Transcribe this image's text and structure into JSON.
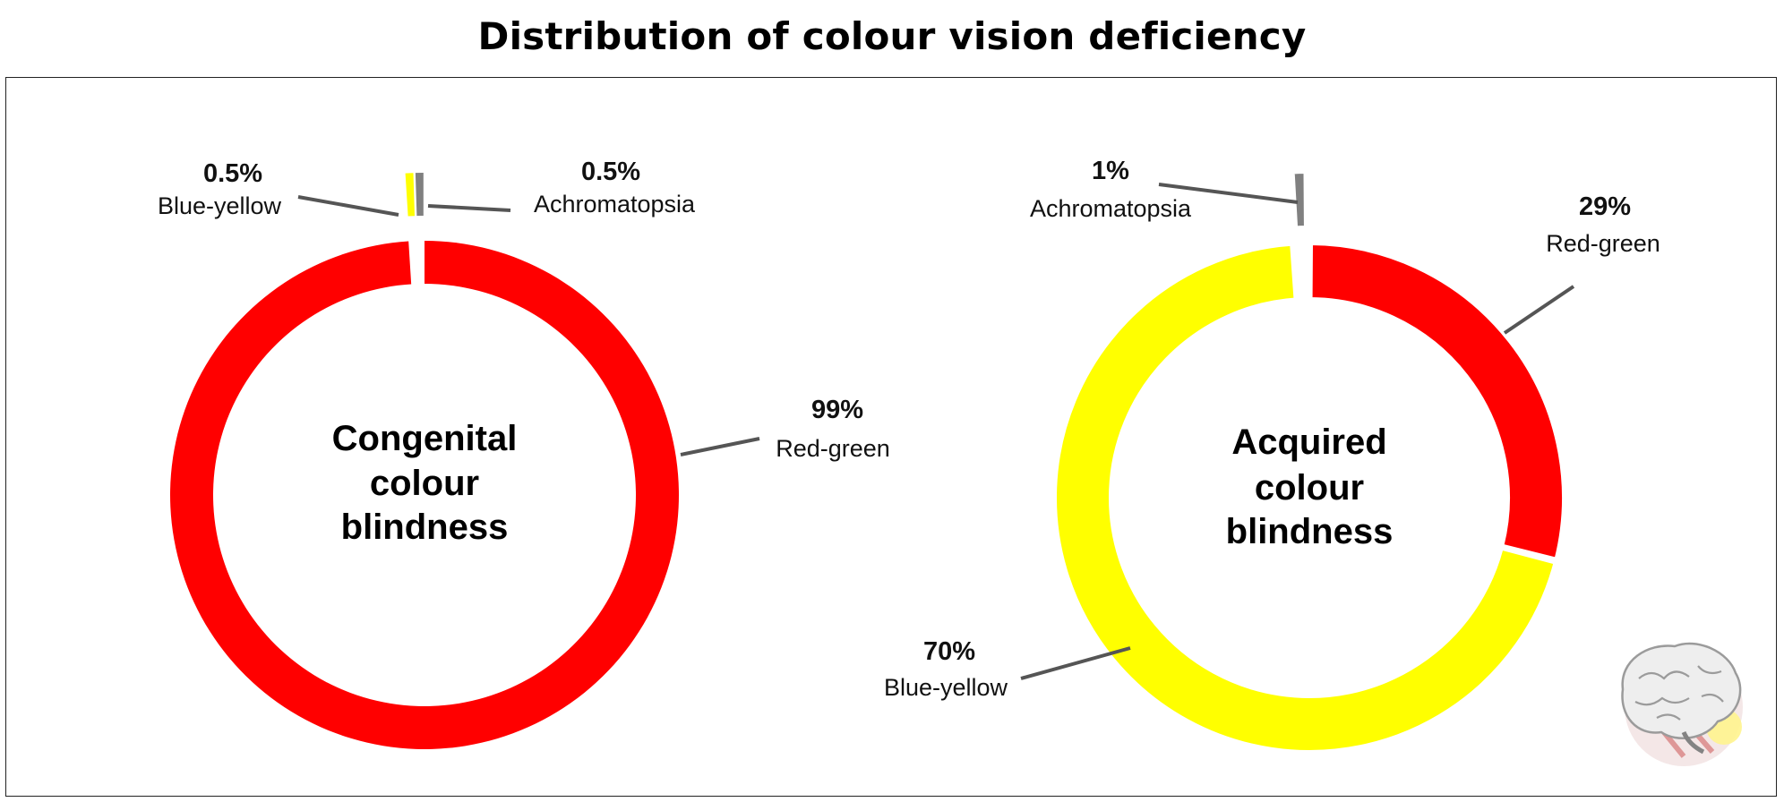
{
  "title": "Distribution of colour vision deficiency",
  "colors": {
    "Red-green": "#ff0000",
    "Blue-yellow": "#ffff00",
    "Achromatopsia": "#808080"
  },
  "chart_data": [
    {
      "type": "pie",
      "variant": "donut",
      "center_label": [
        "Congenital",
        "colour",
        "blindness"
      ],
      "categories": [
        "Red-green",
        "Blue-yellow",
        "Achromatopsia"
      ],
      "values": [
        99,
        0.5,
        0.5
      ],
      "value_labels": [
        "99%",
        "0.5%",
        "0.5%"
      ],
      "exploded": [
        "Blue-yellow",
        "Achromatopsia"
      ]
    },
    {
      "type": "pie",
      "variant": "donut",
      "center_label": [
        "Acquired",
        "colour",
        "blindness"
      ],
      "categories": [
        "Red-green",
        "Blue-yellow",
        "Achromatopsia"
      ],
      "values": [
        29,
        70,
        1
      ],
      "value_labels": [
        "29%",
        "70%",
        "1%"
      ],
      "exploded": [
        "Achromatopsia"
      ]
    }
  ],
  "logo": {
    "icon": "brain-logo-icon"
  }
}
